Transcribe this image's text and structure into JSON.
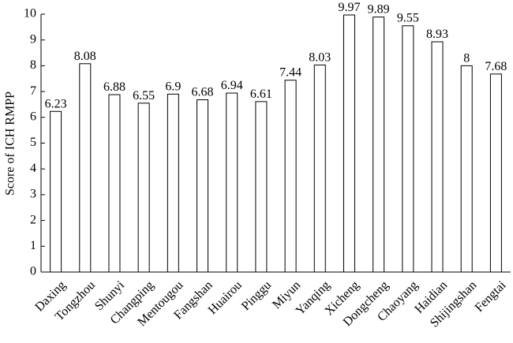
{
  "chart_data": {
    "type": "bar",
    "y_label": "Score of ICH RMPP",
    "categories": [
      "Daxing",
      "Tongzhou",
      "Shunyi",
      "Changping",
      "Mentougou",
      "Fangshan",
      "Huairou",
      "Pinggu",
      "Miyun",
      "Yanqing",
      "Xicheng",
      "Dongcheng",
      "Chaoyang",
      "Haidian",
      "Shijingshan",
      "Fengtai"
    ],
    "values": [
      6.23,
      8.08,
      6.88,
      6.55,
      6.9,
      6.68,
      6.94,
      6.61,
      7.44,
      8.03,
      9.97,
      9.89,
      9.55,
      8.93,
      8,
      7.68
    ],
    "color": "#ffffff",
    "ylim": [
      0,
      10
    ],
    "yticks": [
      0,
      1,
      2,
      3,
      4,
      5,
      6,
      7,
      8,
      9,
      10
    ],
    "grid": false
  }
}
